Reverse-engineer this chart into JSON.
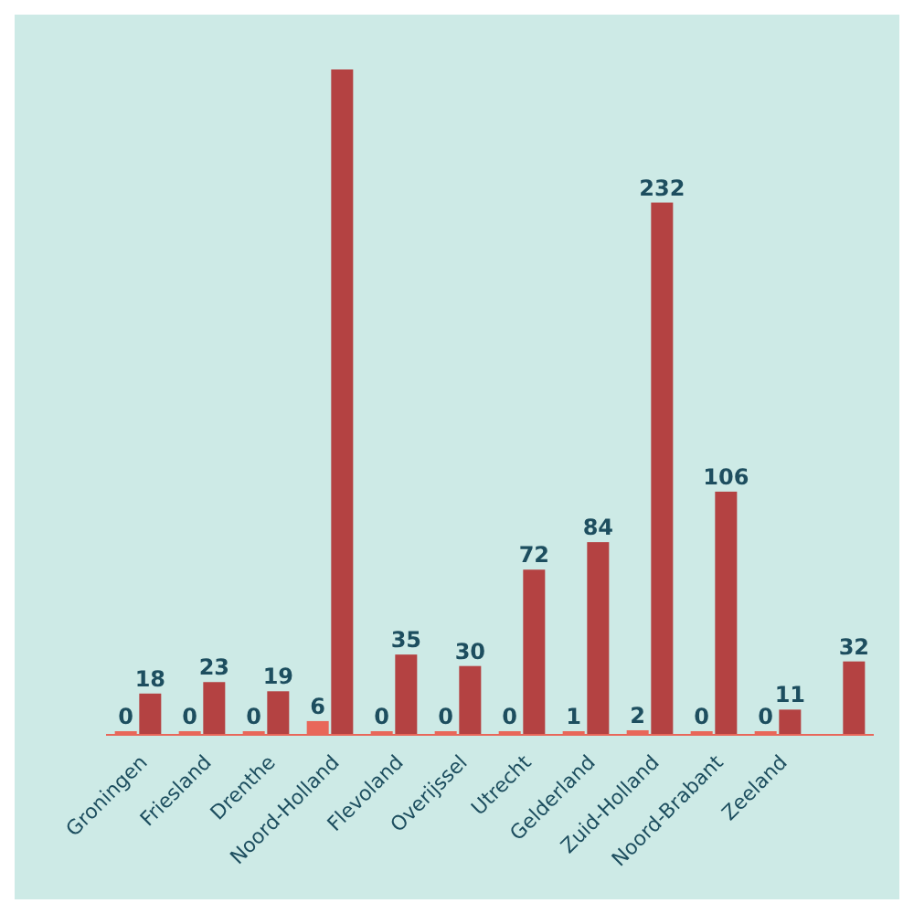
{
  "chart_data": {
    "type": "bar",
    "categories": [
      "Groningen",
      "Friesland",
      "Drenthe",
      "Noord-Holland",
      "Flevoland",
      "Overijssel",
      "Utrecht",
      "Gelderland",
      "Zuid-Holland",
      "Noord-Brabant",
      "Zeeland",
      null
    ],
    "series": [
      {
        "color": "#e8675a",
        "values": [
          0,
          0,
          0,
          6,
          0,
          0,
          0,
          1,
          2,
          0,
          0,
          null
        ],
        "value_labels": [
          "0",
          "0",
          "0",
          "6",
          "0",
          "0",
          "0",
          "1",
          "2",
          "0",
          "0",
          null
        ]
      },
      {
        "color": "#b44242",
        "values": [
          18,
          23,
          19,
          290,
          35,
          30,
          72,
          84,
          232,
          106,
          11,
          32
        ],
        "value_labels": [
          "18",
          "23",
          "19",
          null,
          "35",
          "30",
          "72",
          "84",
          "232",
          "106",
          "11",
          "32"
        ]
      }
    ],
    "relative": false
  }
}
